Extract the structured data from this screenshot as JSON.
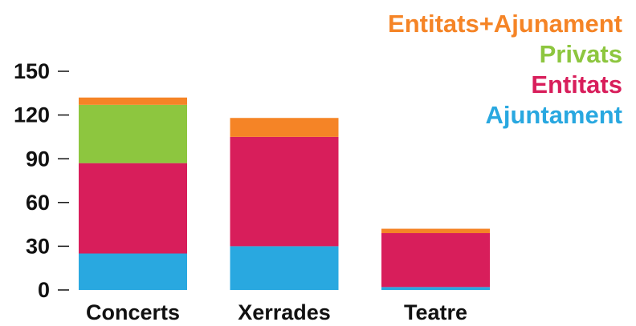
{
  "chart_data": {
    "type": "stacked_bar",
    "categories": [
      "Concerts",
      "Xerrades",
      "Teatre"
    ],
    "series": [
      {
        "name": "Ajuntament",
        "color": "#29a8e0",
        "values": [
          25,
          30,
          2
        ]
      },
      {
        "name": "Entitats",
        "color": "#d81e5b",
        "values": [
          62,
          75,
          37
        ]
      },
      {
        "name": "Privats",
        "color": "#8dc63f",
        "values": [
          40,
          0,
          0
        ]
      },
      {
        "name": "Entitats+Ajunament",
        "color": "#f58426",
        "values": [
          5,
          13,
          3
        ]
      }
    ],
    "ylim": [
      0,
      150
    ],
    "yticks": [
      0,
      30,
      60,
      90,
      120,
      150
    ],
    "legend": "upper right"
  }
}
